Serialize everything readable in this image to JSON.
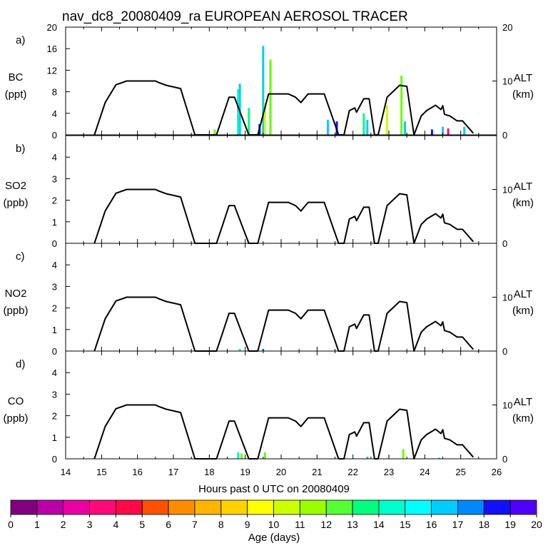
{
  "title": "nav_dc8_20080409_ra EUROPEAN AEROSOL TRACER",
  "xlabel": "Hours past 0 UTC on 20080409",
  "colorbar": {
    "label": "Age (days)",
    "ticks": [
      "0",
      "1",
      "2",
      "3",
      "4",
      "5",
      "6",
      "7",
      "8",
      "9",
      "10",
      "11",
      "12",
      "13",
      "14",
      "15",
      "16",
      "17",
      "18",
      "19",
      "20"
    ],
    "colors": [
      "#800080",
      "#bb00aa",
      "#e800a0",
      "#ff0a78",
      "#ff0a46",
      "#ff5000",
      "#ff8c00",
      "#ffb400",
      "#ffd200",
      "#ffff00",
      "#ccff00",
      "#99ff00",
      "#55ff33",
      "#00ff7f",
      "#00ffcc",
      "#00ffff",
      "#00ccff",
      "#0088ff",
      "#1010ff",
      "#5000ff"
    ]
  },
  "chart_data": [
    {
      "type": "area",
      "panel_label": "a)",
      "ylabel": [
        "BC",
        "(ppt)"
      ],
      "ylabel_right": [
        "ALT",
        "(km)"
      ],
      "xlim": [
        14,
        26
      ],
      "xticks": [
        "14",
        "15",
        "16",
        "17",
        "18",
        "19",
        "20",
        "21",
        "22",
        "23",
        "24",
        "25",
        "26"
      ],
      "ylim": [
        0,
        20
      ],
      "yticks": [
        "0",
        "4",
        "8",
        "12",
        "16",
        "20"
      ],
      "y2lim": [
        0,
        20
      ],
      "y2ticks": [
        "0",
        "10",
        "20"
      ],
      "tracer_spikes": [
        {
          "x": 18.15,
          "value": 1.0,
          "color": "#66ff00"
        },
        {
          "x": 18.8,
          "value": 8.5,
          "color": "#00ffcc"
        },
        {
          "x": 18.85,
          "value": 9.5,
          "color": "#00ccff"
        },
        {
          "x": 19.1,
          "value": 5.0,
          "color": "#00ff7f"
        },
        {
          "x": 19.4,
          "value": 2.0,
          "color": "#1010ff"
        },
        {
          "x": 19.5,
          "value": 16.5,
          "color": "#00ccff"
        },
        {
          "x": 19.55,
          "value": 6.0,
          "color": "#ccff00"
        },
        {
          "x": 19.7,
          "value": 14.0,
          "color": "#66ff00"
        },
        {
          "x": 21.3,
          "value": 2.8,
          "color": "#00ccff"
        },
        {
          "x": 21.55,
          "value": 2.5,
          "color": "#1010ff"
        },
        {
          "x": 22.3,
          "value": 4.0,
          "color": "#00ff7f"
        },
        {
          "x": 22.4,
          "value": 2.8,
          "color": "#00ccff"
        },
        {
          "x": 22.95,
          "value": 5.5,
          "color": "#ccff00"
        },
        {
          "x": 23.35,
          "value": 11.0,
          "color": "#66ff00"
        },
        {
          "x": 23.45,
          "value": 2.5,
          "color": "#00ccff"
        },
        {
          "x": 24.2,
          "value": 1.0,
          "color": "#1010ff"
        },
        {
          "x": 24.5,
          "value": 1.5,
          "color": "#00ccff"
        },
        {
          "x": 24.65,
          "value": 1.2,
          "color": "#ff0a78"
        },
        {
          "x": 25.1,
          "value": 1.5,
          "color": "#00ccff"
        }
      ]
    },
    {
      "type": "area",
      "panel_label": "b)",
      "ylabel": [
        "SO2",
        "(ppb)"
      ],
      "ylabel_right": [
        "ALT",
        "(km)"
      ],
      "xlim": [
        14,
        26
      ],
      "xticks": [
        "14",
        "15",
        "16",
        "17",
        "18",
        "19",
        "20",
        "21",
        "22",
        "23",
        "24",
        "25",
        "26"
      ],
      "ylim": [
        0,
        5
      ],
      "yticks": [
        "0",
        "1",
        "2",
        "3",
        "4"
      ],
      "y2lim": [
        0,
        20
      ],
      "y2ticks": [
        "0",
        "10"
      ],
      "tracer_spikes": []
    },
    {
      "type": "area",
      "panel_label": "c)",
      "ylabel": [
        "NO2",
        "(ppb)"
      ],
      "ylabel_right": [
        "ALT",
        "(km)"
      ],
      "xlim": [
        14,
        26
      ],
      "xticks": [
        "14",
        "15",
        "16",
        "17",
        "18",
        "19",
        "20",
        "21",
        "22",
        "23",
        "24",
        "25",
        "26"
      ],
      "ylim": [
        0,
        5
      ],
      "yticks": [
        "0",
        "1",
        "2",
        "3",
        "4"
      ],
      "y2lim": [
        0,
        20
      ],
      "y2ticks": [
        "0",
        "10"
      ],
      "tracer_spikes": [
        {
          "x": 18.85,
          "value": 0.1,
          "color": "#00ffcc"
        },
        {
          "x": 19.5,
          "value": 0.1,
          "color": "#00ccff"
        }
      ]
    },
    {
      "type": "area",
      "panel_label": "d)",
      "ylabel": [
        "CO",
        "(ppb)"
      ],
      "ylabel_right": [
        "ALT",
        "(km)"
      ],
      "xlim": [
        14,
        26
      ],
      "xticks": [
        "14",
        "15",
        "16",
        "17",
        "18",
        "19",
        "20",
        "21",
        "22",
        "23",
        "24",
        "25",
        "26"
      ],
      "ylim": [
        0,
        5
      ],
      "yticks": [
        "0",
        "1",
        "2",
        "3",
        "4"
      ],
      "y2lim": [
        0,
        20
      ],
      "y2ticks": [
        "0",
        "10"
      ],
      "tracer_spikes": [
        {
          "x": 18.8,
          "value": 0.3,
          "color": "#00ffcc"
        },
        {
          "x": 18.9,
          "value": 0.25,
          "color": "#66ff00"
        },
        {
          "x": 19.55,
          "value": 0.3,
          "color": "#66ff00"
        },
        {
          "x": 22.4,
          "value": 0.1,
          "color": "#00ccff"
        },
        {
          "x": 23.4,
          "value": 0.45,
          "color": "#66ff00"
        },
        {
          "x": 24.4,
          "value": 0.05,
          "color": "#00ccff"
        }
      ]
    }
  ],
  "altitude_km": {
    "x": [
      14.8,
      15.1,
      15.4,
      15.7,
      16.1,
      16.5,
      16.6,
      16.8,
      17.2,
      17.6,
      18.2,
      18.35,
      18.55,
      18.7,
      18.9,
      19.1,
      19.35,
      19.65,
      20.2,
      20.4,
      20.55,
      20.75,
      21.2,
      21.6,
      21.75,
      21.9,
      22.05,
      22.1,
      22.3,
      22.45,
      22.6,
      22.7,
      22.95,
      23.3,
      23.5,
      23.7,
      23.9,
      24.05,
      24.3,
      24.45,
      24.5,
      24.55,
      24.7,
      24.9,
      25.05,
      25.35
    ],
    "y": [
      0,
      6,
      9.3,
      10,
      10,
      10,
      9.7,
      9.2,
      8.6,
      0,
      0,
      3.0,
      7.0,
      7.0,
      3.5,
      0,
      0,
      7.6,
      7.6,
      7.0,
      6.0,
      7.6,
      7.6,
      0,
      0,
      4.5,
      5.0,
      4.2,
      6.7,
      6.7,
      0,
      0,
      7.0,
      9.2,
      9.0,
      0,
      3.5,
      4.5,
      5.5,
      4.7,
      5.4,
      3.8,
      3.5,
      2.6,
      2.6,
      0.3
    ]
  }
}
